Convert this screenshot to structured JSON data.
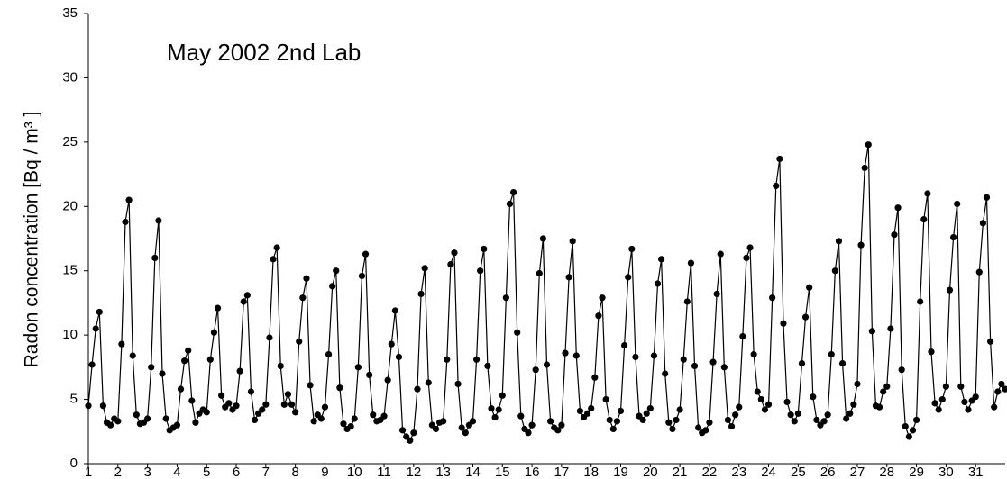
{
  "chart_data": {
    "type": "line",
    "annotation": "May 2002 2nd Lab",
    "ylabel": "Radon concentration [Bq / m³ ]",
    "color": "#000000",
    "markers": true,
    "grid": false,
    "xlim": [
      1,
      32
    ],
    "xticks": [
      1,
      2,
      3,
      4,
      5,
      6,
      7,
      8,
      9,
      10,
      11,
      12,
      13,
      14,
      15,
      16,
      17,
      18,
      19,
      20,
      21,
      22,
      23,
      24,
      25,
      26,
      27,
      28,
      29,
      30,
      31
    ],
    "ylim": [
      0,
      35
    ],
    "yticks": [
      0,
      5,
      10,
      15,
      20,
      25,
      30,
      35
    ],
    "x": [
      1,
      1.125,
      1.25,
      1.375,
      1.5,
      1.625,
      1.75,
      1.875,
      2,
      2.125,
      2.25,
      2.375,
      2.5,
      2.625,
      2.75,
      2.875,
      3,
      3.125,
      3.25,
      3.375,
      3.5,
      3.625,
      3.75,
      3.875,
      4,
      4.125,
      4.25,
      4.375,
      4.5,
      4.625,
      4.75,
      4.875,
      5,
      5.125,
      5.25,
      5.375,
      5.5,
      5.625,
      5.75,
      5.875,
      6,
      6.125,
      6.25,
      6.375,
      6.5,
      6.625,
      6.75,
      6.875,
      7,
      7.125,
      7.25,
      7.375,
      7.5,
      7.625,
      7.75,
      7.875,
      8,
      8.125,
      8.25,
      8.375,
      8.5,
      8.625,
      8.75,
      8.875,
      9,
      9.125,
      9.25,
      9.375,
      9.5,
      9.625,
      9.75,
      9.875,
      10,
      10.125,
      10.25,
      10.375,
      10.5,
      10.625,
      10.75,
      10.875,
      11,
      11.125,
      11.25,
      11.375,
      11.5,
      11.625,
      11.75,
      11.875,
      12,
      12.125,
      12.25,
      12.375,
      12.5,
      12.625,
      12.75,
      12.875,
      13,
      13.125,
      13.25,
      13.375,
      13.5,
      13.625,
      13.75,
      13.875,
      14,
      14.125,
      14.25,
      14.375,
      14.5,
      14.625,
      14.75,
      14.875,
      15,
      15.125,
      15.25,
      15.375,
      15.5,
      15.625,
      15.75,
      15.875,
      16,
      16.125,
      16.25,
      16.375,
      16.5,
      16.625,
      16.75,
      16.875,
      17,
      17.125,
      17.25,
      17.375,
      17.5,
      17.625,
      17.75,
      17.875,
      18,
      18.125,
      18.25,
      18.375,
      18.5,
      18.625,
      18.75,
      18.875,
      19,
      19.125,
      19.25,
      19.375,
      19.5,
      19.625,
      19.75,
      19.875,
      20,
      20.125,
      20.25,
      20.375,
      20.5,
      20.625,
      20.75,
      20.875,
      21,
      21.125,
      21.25,
      21.375,
      21.5,
      21.625,
      21.75,
      21.875,
      22,
      22.125,
      22.25,
      22.375,
      22.5,
      22.625,
      22.75,
      22.875,
      23,
      23.125,
      23.25,
      23.375,
      23.5,
      23.625,
      23.75,
      23.875,
      24,
      24.125,
      24.25,
      24.375,
      24.5,
      24.625,
      24.75,
      24.875,
      25,
      25.125,
      25.25,
      25.375,
      25.5,
      25.625,
      25.75,
      25.875,
      26,
      26.125,
      26.25,
      26.375,
      26.5,
      26.625,
      26.75,
      26.875,
      27,
      27.125,
      27.25,
      27.375,
      27.5,
      27.625,
      27.75,
      27.875,
      28,
      28.125,
      28.25,
      28.375,
      28.5,
      28.625,
      28.75,
      28.875,
      29,
      29.125,
      29.25,
      29.375,
      29.5,
      29.625,
      29.75,
      29.875,
      30,
      30.125,
      30.25,
      30.375,
      30.5,
      30.625,
      30.75,
      30.875,
      31,
      31.125,
      31.25,
      31.375,
      31.5,
      31.625,
      31.75,
      31.875,
      32
    ],
    "values": [
      4.5,
      7.7,
      10.5,
      11.8,
      4.5,
      3.2,
      3.0,
      3.5,
      3.3,
      9.3,
      18.8,
      20.5,
      8.4,
      3.8,
      3.1,
      3.2,
      3.5,
      7.5,
      16,
      18.9,
      7,
      3.5,
      2.6,
      2.8,
      3.0,
      5.8,
      8.0,
      8.8,
      4.9,
      3.2,
      3.9,
      4.2,
      4.0,
      8.1,
      10.2,
      12.1,
      5.3,
      4.4,
      4.7,
      4.2,
      4.5,
      7.2,
      12.6,
      13.1,
      5.6,
      3.4,
      3.9,
      4.2,
      4.6,
      9.8,
      15.9,
      16.8,
      7.6,
      4.6,
      5.4,
      4.6,
      4.0,
      9.5,
      12.9,
      14.4,
      6.1,
      3.3,
      3.8,
      3.5,
      4.4,
      8.5,
      13.8,
      15.0,
      5.9,
      3.1,
      2.7,
      2.9,
      3.5,
      7.5,
      14.6,
      16.3,
      6.9,
      3.8,
      3.3,
      3.4,
      3.7,
      6.5,
      9.3,
      11.9,
      8.3,
      2.6,
      2.1,
      1.8,
      2.4,
      5.8,
      13.2,
      15.2,
      6.3,
      3.0,
      2.7,
      3.2,
      3.3,
      8.1,
      15.5,
      16.4,
      6.2,
      2.8,
      2.4,
      3.0,
      3.3,
      8.1,
      15.0,
      16.7,
      7.6,
      4.3,
      3.6,
      4.2,
      5.3,
      12.9,
      20.2,
      21.1,
      10.2,
      3.7,
      2.7,
      2.4,
      3.0,
      7.3,
      14.8,
      17.5,
      7.7,
      3.3,
      2.8,
      2.6,
      3.0,
      8.6,
      14.5,
      17.3,
      8.4,
      4.1,
      3.6,
      3.9,
      4.3,
      6.7,
      11.5,
      12.9,
      5.0,
      3.4,
      2.7,
      3.3,
      4.1,
      9.2,
      14.5,
      16.7,
      8.3,
      3.7,
      3.4,
      3.9,
      4.3,
      8.4,
      14.0,
      15.9,
      7.0,
      3.2,
      2.7,
      3.4,
      4.2,
      8.1,
      12.6,
      15.6,
      7.6,
      2.8,
      2.4,
      2.6,
      3.2,
      7.9,
      13.2,
      16.3,
      7.5,
      3.4,
      2.9,
      3.8,
      4.4,
      9.9,
      16.0,
      16.8,
      8.5,
      5.6,
      5.0,
      4.2,
      4.6,
      12.9,
      21.6,
      23.7,
      10.9,
      4.8,
      3.8,
      3.3,
      3.9,
      7.8,
      11.4,
      13.7,
      5.2,
      3.4,
      3.0,
      3.3,
      3.8,
      8.5,
      15.0,
      17.3,
      7.8,
      3.5,
      3.9,
      4.6,
      6.2,
      17.0,
      23.0,
      24.8,
      10.3,
      4.5,
      4.4,
      5.6,
      6.0,
      10.5,
      17.8,
      19.9,
      7.3,
      2.9,
      2.1,
      2.6,
      3.4,
      12.6,
      19.0,
      21.0,
      8.7,
      4.7,
      4.2,
      5.0,
      6.0,
      13.5,
      17.6,
      20.2,
      6.0,
      4.8,
      4.2,
      4.9,
      5.2,
      14.9,
      18.7,
      20.7,
      9.5,
      4.4,
      5.6,
      6.2,
      5.8
    ]
  }
}
